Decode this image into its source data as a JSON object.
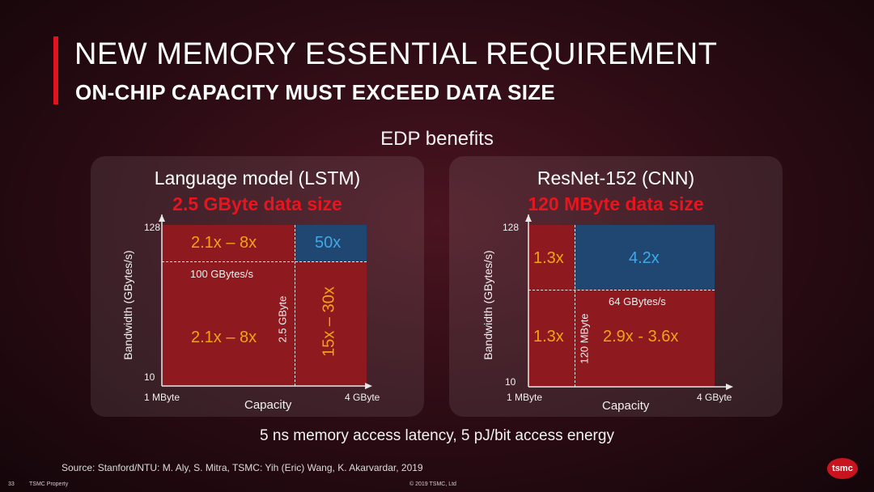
{
  "header": {
    "title": "NEW MEMORY ESSENTIAL REQUIREMENT",
    "subtitle": "ON-CHIP CAPACITY MUST EXCEED DATA SIZE",
    "accent_color": "#e0141e"
  },
  "section_title": "EDP benefits",
  "panels": {
    "lstm": {
      "title": "Language model (LSTM)",
      "data_size": "2.5 GByte data size",
      "y_axis_label": "Bandwidth (GBytes/s)",
      "y_tick_top": "128",
      "y_tick_bottom": "10",
      "x_axis_label": "Capacity",
      "x_tick_left": "1 MByte",
      "x_tick_right": "4 GByte",
      "bandwidth_threshold": "100 GBytes/s",
      "capacity_threshold": "2.5 GByte",
      "top_left_value": "2.1x – 8x",
      "top_right_value": "50x",
      "bottom_left_value": "2.1x – 8x",
      "bottom_right_value": "15x – 30x"
    },
    "resnet": {
      "title": "ResNet-152 (CNN)",
      "data_size": "120 MByte data size",
      "y_axis_label": "Bandwidth (GBytes/s)",
      "y_tick_top": "128",
      "y_tick_bottom": "10",
      "x_axis_label": "Capacity",
      "x_tick_left": "1 MByte",
      "x_tick_right": "4 GByte",
      "bandwidth_threshold": "64 GBytes/s",
      "capacity_threshold": "120 MByte",
      "top_left_value": "1.3x",
      "top_right_value": "4.2x",
      "bottom_left_value": "1.3x",
      "bottom_right_value": "2.9x  - 3.6x"
    }
  },
  "colors": {
    "red_region": "#8e1a1f",
    "blue_region": "#1f4771",
    "orange_text": "#f0a317",
    "cyan_text": "#41a8e8",
    "data_size_text": "#e8141e"
  },
  "footer": {
    "note": "5 ns memory access latency, 5 pJ/bit access energy",
    "source": "Source: Stanford/NTU: M. Aly, S. Mitra, TSMC: Yih (Eric) Wang, K. Akarvardar, 2019",
    "page_number": "33",
    "property": "TSMC Property",
    "copyright": "© 2019 TSMC, Ltd",
    "logo_text": "tsmc"
  }
}
